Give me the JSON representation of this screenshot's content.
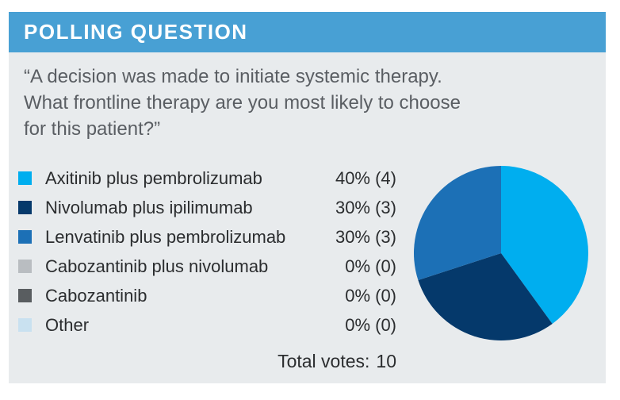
{
  "header": {
    "title": "POLLING QUESTION"
  },
  "question": "“A decision was made to initiate systemic therapy.\nWhat frontline therapy are you most likely to choose\nfor this patient?”",
  "total": {
    "label": "Total votes:",
    "value": "10"
  },
  "colors": {
    "header_bg": "#48a0d4",
    "panel_bg": "#e8ebed",
    "question_text": "#5a5e63",
    "legend_text": "#2b2d2f"
  },
  "chart_data": {
    "type": "pie",
    "title": "Polling question results",
    "total_votes": 10,
    "start_angle_deg": 0,
    "direction": "clockwise",
    "legend_position": "left",
    "slices": [
      {
        "label": "Axitinib plus pembrolizumab",
        "percent": 40,
        "votes": 4,
        "display": "40% (4)",
        "color": "#00aeef"
      },
      {
        "label": "Nivolumab plus ipilimumab",
        "percent": 30,
        "votes": 3,
        "display": "30% (3)",
        "color": "#05396b"
      },
      {
        "label": "Lenvatinib plus pembrolizumab",
        "percent": 30,
        "votes": 3,
        "display": "30% (3)",
        "color": "#1c70b6"
      },
      {
        "label": "Cabozantinib plus nivolumab",
        "percent": 0,
        "votes": 0,
        "display": "0% (0)",
        "color": "#b9bdc1"
      },
      {
        "label": "Cabozantinib",
        "percent": 0,
        "votes": 0,
        "display": "0% (0)",
        "color": "#595d60"
      },
      {
        "label": "Other",
        "percent": 0,
        "votes": 0,
        "display": "0% (0)",
        "color": "#c9e1f0"
      }
    ]
  }
}
